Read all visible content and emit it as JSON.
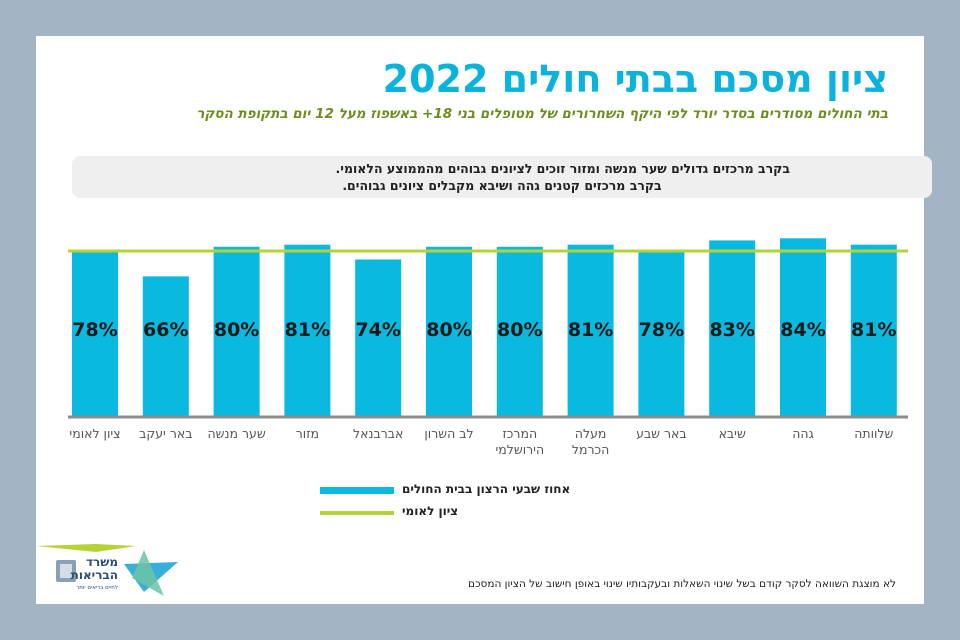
{
  "header": {
    "title": "ציון מסכם בבתי חולים 2022",
    "subtitle": "בתי החולים מסודרים בסדר יורד לפי היקף השחרורים של מטופלים בני 18+ באשפוז מעל 12 יום בתקופת הסקר"
  },
  "note": {
    "line1": "בקרב מרכזים גדולים שער מנשה ומזור זוכים לציונים גבוהים מהממוצע הלאומי.",
    "line2": "בקרב מרכזים קטנים גהה ושיבא מקבלים ציונים גבוהים."
  },
  "chart_data": {
    "type": "bar",
    "title": "ציון מסכם בבתי חולים 2022",
    "xlabel": "",
    "ylabel": "",
    "ylim": [
      0,
      100
    ],
    "grid": false,
    "categories": [
      "ציון לאומי",
      "באר יעקב",
      "שער מנשה",
      "מזור",
      "אברבנאל",
      "לב השרון",
      "המרכז הירושלמי",
      "מעלה הכרמל",
      "באר שבע",
      "שיבא",
      "גהה",
      "שלוותה"
    ],
    "category_lines": [
      [
        "ציון לאומי"
      ],
      [
        "באר יעקב"
      ],
      [
        "שער מנשה"
      ],
      [
        "מזור"
      ],
      [
        "אברבנאל"
      ],
      [
        "לב השרון"
      ],
      [
        "המרכז",
        "הירושלמי"
      ],
      [
        "מעלה",
        "הכרמל"
      ],
      [
        "באר שבע"
      ],
      [
        "שיבא"
      ],
      [
        "גהה"
      ],
      [
        "שלוותה"
      ]
    ],
    "series": [
      {
        "name": "אחוז שבעי הרצון בבית החולים",
        "color": "#0ab9e0",
        "values": [
          78,
          66,
          80,
          81,
          74,
          80,
          80,
          81,
          78,
          83,
          84,
          81
        ],
        "labels": [
          "78%",
          "66%",
          "80%",
          "81%",
          "74%",
          "80%",
          "80%",
          "81%",
          "78%",
          "83%",
          "84%",
          "81%"
        ]
      },
      {
        "name": "ציון לאומי",
        "color": "#b5d334",
        "type": "line",
        "value": 78
      }
    ],
    "legend_position": "bottom-center"
  },
  "legend": {
    "items": [
      {
        "label": "אחוז שבעי הרצון בבית החולים",
        "color": "#0ab9e0"
      },
      {
        "label": "ציון לאומי",
        "color": "#b5d334"
      }
    ]
  },
  "logo": {
    "line1": "משרד",
    "line2": "הבריאות",
    "tagline": "לחיים בריאים יותר"
  },
  "footnote": "לא מוצגת השוואה לסקר קודם בשל שינוי השאלות ובעקבותיו שינוי באופן חישוב של הציון המסכם"
}
